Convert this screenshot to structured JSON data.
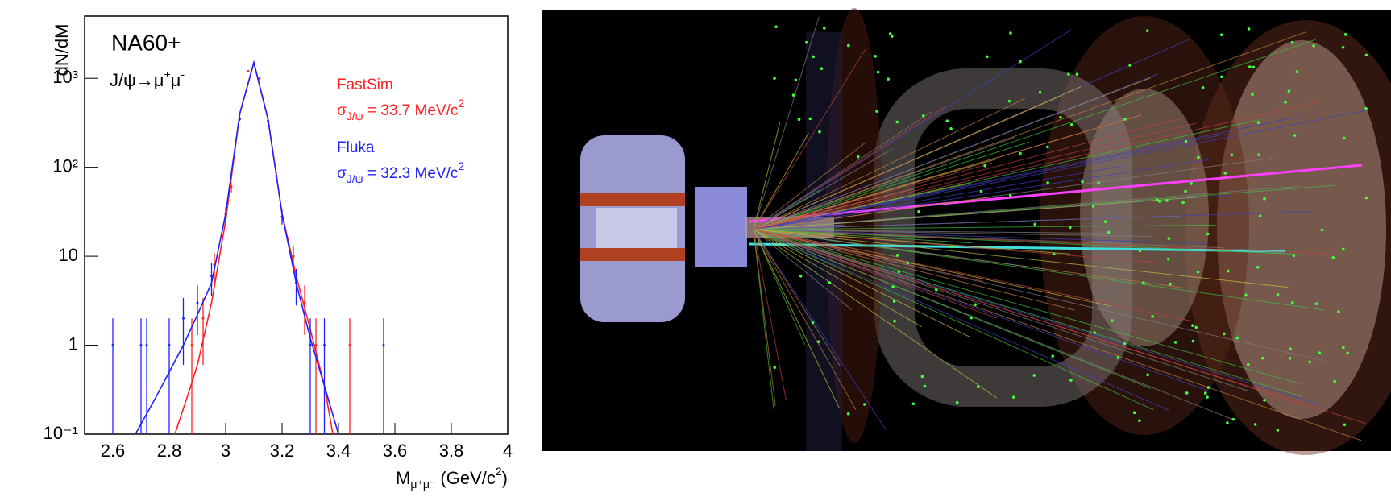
{
  "chart_data": {
    "type": "line",
    "title": "NA60+",
    "subtitle": {
      "text": "J/ψ→μ",
      "sup1": "+",
      "mid": "μ",
      "sup2": "-"
    },
    "ylabel": "dN/dM",
    "xlabel": {
      "text": "M",
      "subscript": "μ⁺μ⁻",
      "text2": " (GeV/c",
      "superscript": "2",
      "text3": ")"
    },
    "xlim": [
      2.5,
      4.0
    ],
    "xticks": [
      2.6,
      2.8,
      3,
      3.2,
      3.4,
      3.6,
      3.8,
      4
    ],
    "ylim": [
      0.1,
      5000
    ],
    "log_y": true,
    "yticks": [
      {
        "value": 0.1,
        "label": "10⁻¹"
      },
      1,
      10,
      {
        "value": 100,
        "label": "10²"
      },
      {
        "value": 1000,
        "label": "10³"
      }
    ],
    "series": [
      {
        "name": "FastSim",
        "color": "#ff2020",
        "annotation": {
          "symbol": "σ",
          "subscript": "J/ψ",
          "text": " = 33.7 MeV/c",
          "superscript": "2"
        },
        "x": [
          2.82,
          2.87,
          2.9,
          2.95,
          3.0,
          3.05,
          3.1,
          3.15,
          3.2,
          3.25,
          3.3,
          3.35,
          3.38
        ],
        "values": [
          0.1,
          0.3,
          0.6,
          3,
          25,
          400,
          1500,
          350,
          30,
          6,
          1.5,
          0.35,
          0.1
        ],
        "points": {
          "x": [
            2.88,
            2.92,
            2.96,
            3.02,
            3.08,
            3.12,
            3.18,
            3.24,
            3.28,
            3.32,
            3.44
          ],
          "values": [
            1,
            2,
            8,
            60,
            1200,
            1000,
            80,
            10,
            3,
            1,
            1
          ],
          "errors": [
            1,
            1.4,
            2.8,
            7.7,
            35,
            32,
            9,
            3.2,
            1.7,
            1,
            1
          ]
        }
      },
      {
        "name": "Fluka",
        "color": "#2020ff",
        "annotation": {
          "symbol": "σ",
          "subscript": "J/ψ",
          "text": " = 32.3 MeV/c",
          "superscript": "2"
        },
        "x": [
          2.68,
          2.75,
          2.8,
          2.85,
          2.9,
          2.95,
          3.0,
          3.05,
          3.1,
          3.15,
          3.2,
          3.25,
          3.3,
          3.35,
          3.4
        ],
        "values": [
          0.1,
          0.25,
          0.5,
          1,
          2.2,
          5,
          30,
          400,
          1500,
          350,
          30,
          5,
          1.2,
          0.35,
          0.1
        ],
        "points": {
          "x": [
            2.6,
            2.7,
            2.72,
            2.8,
            2.85,
            2.9,
            2.95,
            3.0,
            3.05,
            3.1,
            3.15,
            3.2,
            3.25,
            3.3,
            3.35,
            3.56
          ],
          "values": [
            1,
            1,
            1,
            1,
            2,
            3,
            6,
            30,
            350,
            1450,
            330,
            28,
            5,
            1,
            1,
            1
          ],
          "errors": [
            1,
            1,
            1,
            1,
            1.4,
            1.7,
            2.4,
            5.5,
            19,
            38,
            18,
            5.3,
            2.2,
            1,
            1,
            1
          ]
        }
      }
    ]
  }
}
